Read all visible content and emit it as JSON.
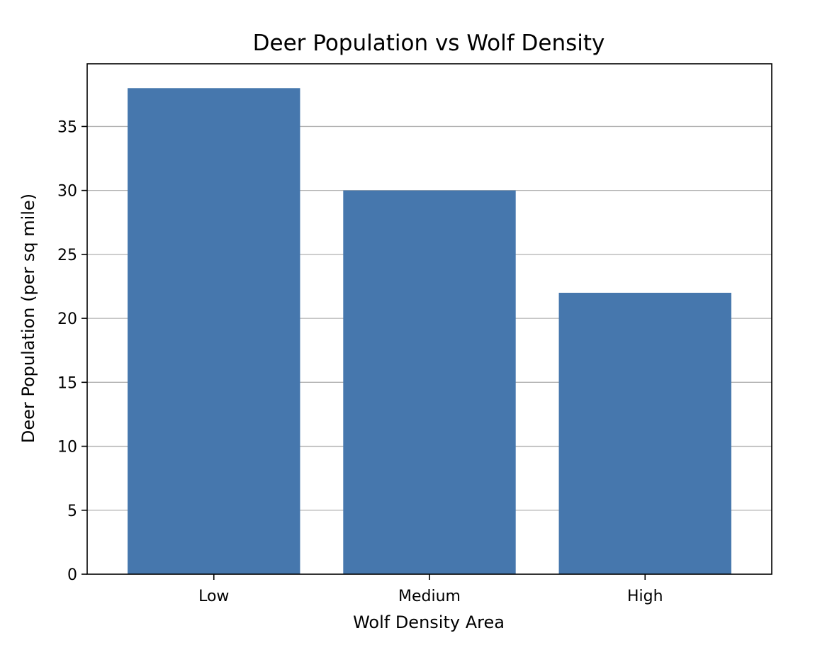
{
  "chart_data": {
    "type": "bar",
    "title": "Deer Population vs Wolf Density",
    "xlabel": "Wolf Density Area",
    "ylabel": "Deer Population (per sq mile)",
    "categories": [
      "Low",
      "Medium",
      "High"
    ],
    "values": [
      38,
      30,
      22
    ],
    "ylim": [
      0,
      39.9
    ],
    "yticks": [
      0,
      5,
      10,
      15,
      20,
      25,
      30,
      35
    ],
    "grid": "y",
    "legend": "none",
    "colors": {
      "bar": "#4677ad",
      "grid": "#b0b0b0",
      "axis": "#000000",
      "background": "#ffffff"
    }
  }
}
